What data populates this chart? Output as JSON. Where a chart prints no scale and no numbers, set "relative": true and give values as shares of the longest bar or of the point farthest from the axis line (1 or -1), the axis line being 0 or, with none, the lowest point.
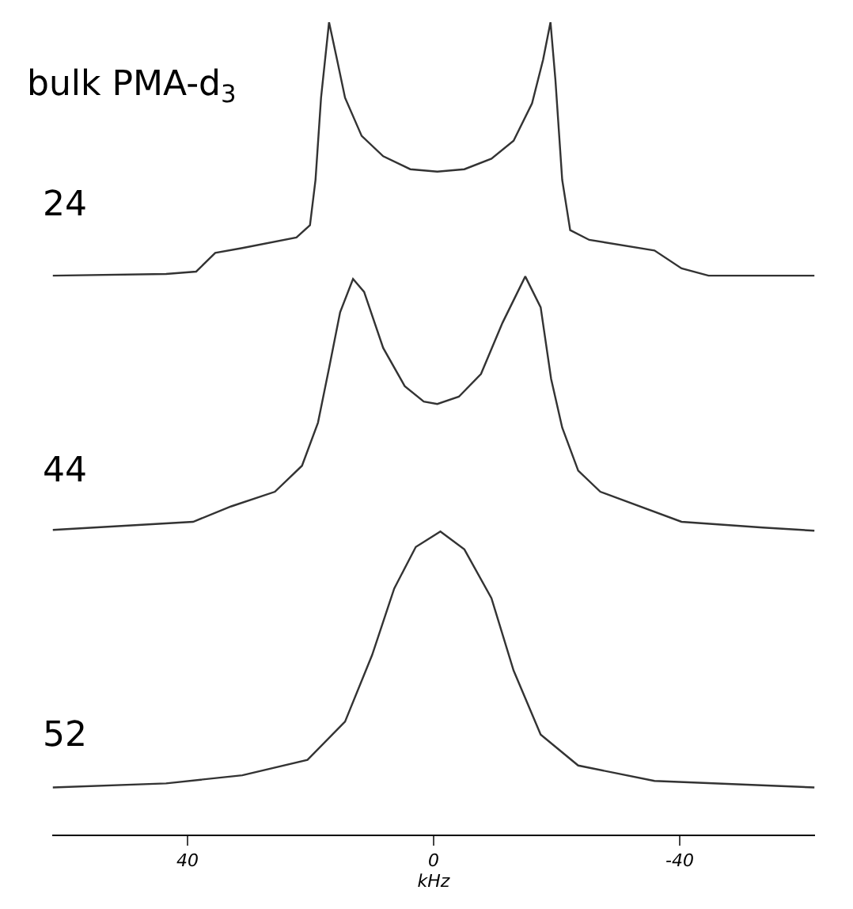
{
  "chart_data": {
    "type": "line",
    "title": "bulk PMA-d$_{3}$",
    "relative": true,
    "xlim": [
      62,
      -62
    ],
    "xticks": [
      40,
      0,
      -40
    ],
    "tick_labels": "x",
    "xlabel": "kHz",
    "annotations": [
      "24",
      "44",
      "52"
    ],
    "series": [
      {
        "color": "#333333",
        "x": [
          61.9,
          43.5,
          38.6,
          35.5,
          31.1,
          22.3,
          20.1,
          19.2,
          18.3,
          17.0,
          15.7,
          14.4,
          11.7,
          8.2,
          3.8,
          -0.6,
          -5.0,
          -9.4,
          -13.0,
          -16.0,
          -17.8,
          -19.0,
          -19.8,
          -20.9,
          -22.2,
          -25.3,
          -35.9,
          -40.3,
          -44.7,
          -61.9
        ],
        "values": [
          0.688,
          0.69,
          0.693,
          0.716,
          0.722,
          0.735,
          0.75,
          0.806,
          0.907,
          1.0,
          0.954,
          0.907,
          0.86,
          0.835,
          0.819,
          0.816,
          0.819,
          0.832,
          0.854,
          0.9,
          0.954,
          1.0,
          0.929,
          0.806,
          0.744,
          0.732,
          0.719,
          0.697,
          0.688,
          0.688
        ]
      },
      {
        "color": "#333333",
        "x": [
          61.9,
          39.1,
          32.9,
          25.8,
          21.4,
          18.8,
          17.0,
          15.2,
          13.1,
          11.3,
          8.2,
          4.7,
          1.6,
          -0.6,
          -4.1,
          -7.7,
          -11.2,
          -14.9,
          -17.4,
          -19.1,
          -20.9,
          -23.5,
          -27.1,
          -40.3,
          -53.5,
          -61.9
        ],
        "values": [
          0.375,
          0.385,
          0.404,
          0.422,
          0.454,
          0.507,
          0.574,
          0.643,
          0.684,
          0.668,
          0.599,
          0.552,
          0.533,
          0.53,
          0.539,
          0.567,
          0.63,
          0.687,
          0.649,
          0.561,
          0.501,
          0.448,
          0.422,
          0.385,
          0.378,
          0.374
        ]
      },
      {
        "color": "#333333",
        "x": [
          61.9,
          43.5,
          31.1,
          20.5,
          14.4,
          10.0,
          6.4,
          2.9,
          -1.1,
          -5.0,
          -9.4,
          -13.0,
          -17.4,
          -23.5,
          -35.9,
          -61.9
        ],
        "values": [
          0.058,
          0.063,
          0.073,
          0.092,
          0.139,
          0.221,
          0.303,
          0.354,
          0.373,
          0.351,
          0.291,
          0.202,
          0.123,
          0.085,
          0.066,
          0.058
        ]
      }
    ]
  }
}
